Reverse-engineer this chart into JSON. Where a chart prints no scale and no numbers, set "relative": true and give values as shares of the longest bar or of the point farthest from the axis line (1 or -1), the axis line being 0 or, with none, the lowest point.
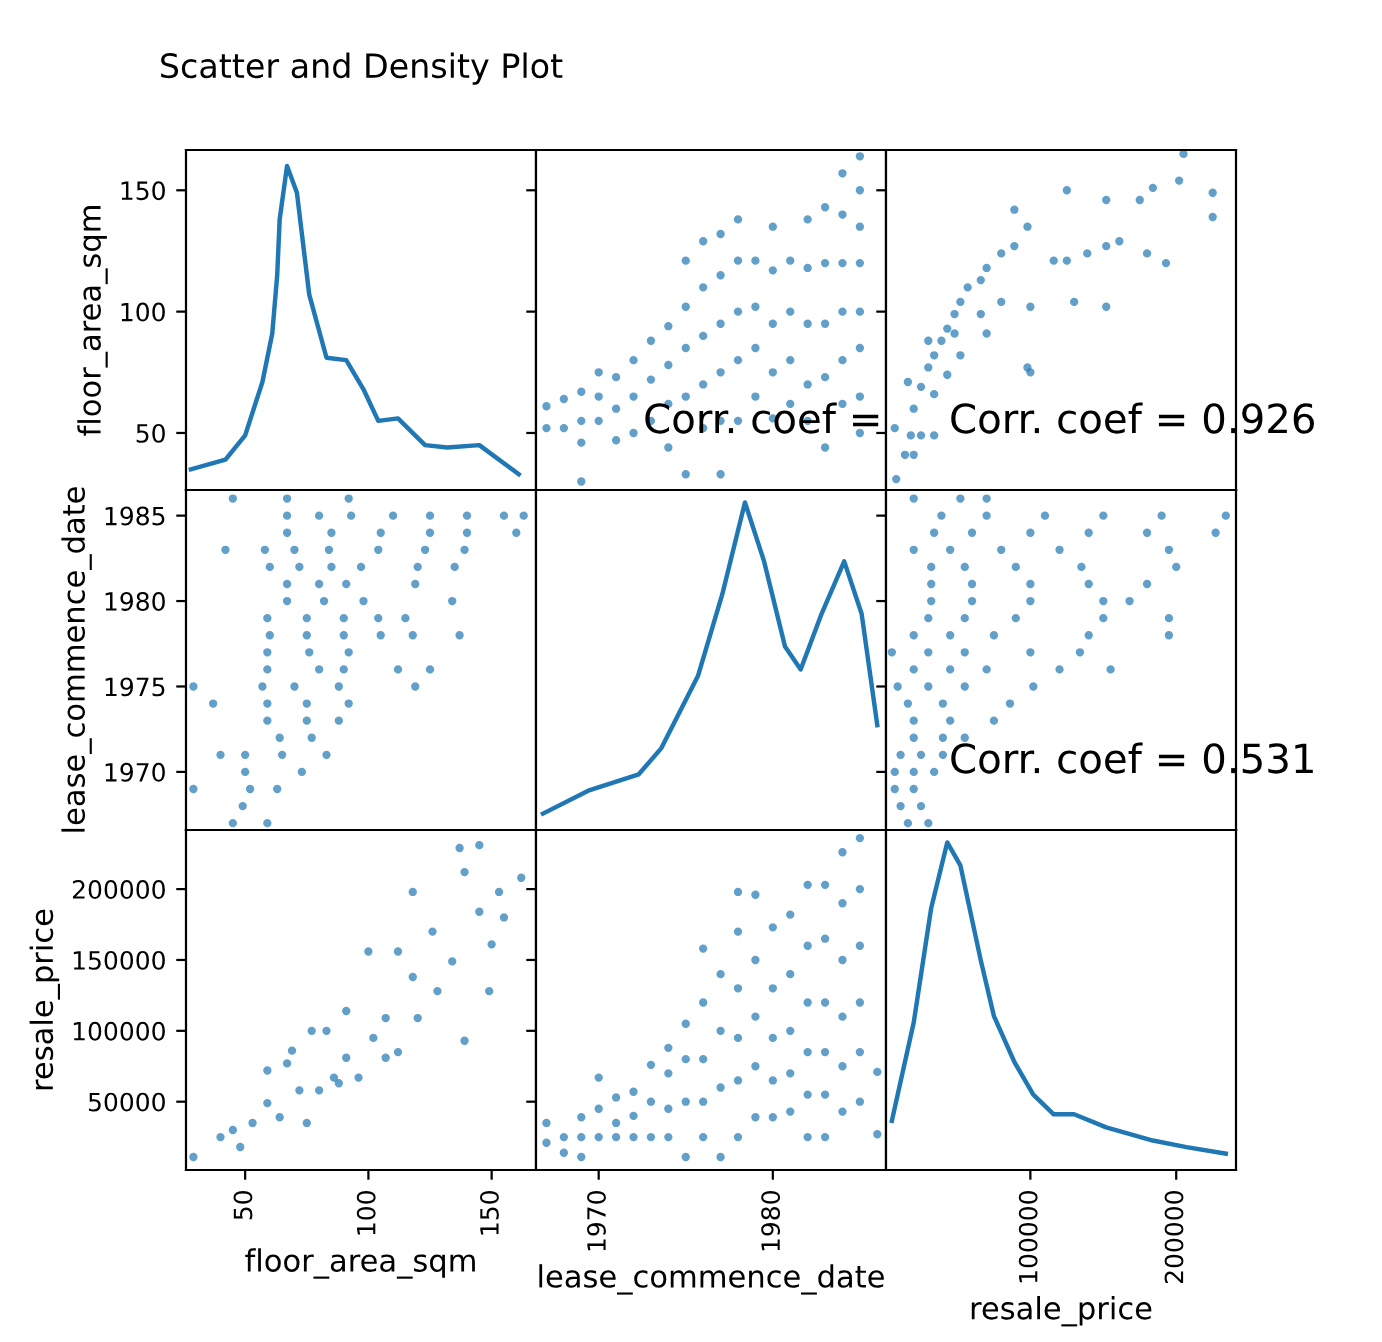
{
  "chart_data": [
    {
      "type": "line",
      "title": "Scatter and Density Plot",
      "ylabel": "floor_area_sqm",
      "tick_labels": "y",
      "xlim": [
        26,
        168
      ],
      "xticks": [
        50,
        100,
        150
      ],
      "ylim": [
        26.5,
        166.6
      ],
      "yticks": [
        50,
        100,
        150
      ],
      "marker": "none",
      "series": [
        {
          "color": "#1f77b4",
          "x": [
            28,
            42,
            50,
            57,
            61,
            63,
            64,
            67,
            71,
            76,
            83,
            91,
            98,
            104,
            112,
            123,
            132,
            145,
            161
          ],
          "values": [
            35,
            39,
            49,
            71,
            91,
            115,
            138,
            160,
            149,
            107,
            81,
            80,
            68,
            55,
            56,
            45,
            44,
            45,
            33
          ]
        }
      ]
    },
    {
      "type": "scatter",
      "tick_labels": false,
      "xlim": [
        1966.4,
        1986.5
      ],
      "xticks": [
        1970,
        1980
      ],
      "ylim": [
        26.5,
        166.6
      ],
      "yticks": [
        50,
        100,
        150
      ],
      "marker": "circle",
      "annotations": [
        "Corr. coef ="
      ],
      "series": [
        {
          "color": "#1f77b4",
          "x": [
            1967,
            1967,
            1968,
            1968,
            1969,
            1969,
            1969,
            1969,
            1970,
            1970,
            1970,
            1971,
            1971,
            1971,
            1972,
            1972,
            1972,
            1973,
            1973,
            1973,
            1974,
            1974,
            1974,
            1974,
            1975,
            1975,
            1975,
            1975,
            1975,
            1976,
            1976,
            1976,
            1976,
            1976,
            1977,
            1977,
            1977,
            1977,
            1977,
            1977,
            1978,
            1978,
            1978,
            1978,
            1978,
            1979,
            1979,
            1979,
            1979,
            1980,
            1980,
            1980,
            1980,
            1980,
            1981,
            1981,
            1981,
            1981,
            1982,
            1982,
            1982,
            1982,
            1982,
            1983,
            1983,
            1983,
            1983,
            1983,
            1984,
            1984,
            1984,
            1984,
            1984,
            1984,
            1985,
            1985,
            1985,
            1985,
            1985,
            1985,
            1985,
            1985
          ],
          "values": [
            61,
            52,
            64,
            52,
            67,
            55,
            46,
            30,
            75,
            65,
            55,
            73,
            60,
            47,
            80,
            65,
            50,
            88,
            72,
            55,
            94,
            78,
            62,
            44,
            121,
            102,
            85,
            65,
            33,
            129,
            110,
            90,
            70,
            52,
            132,
            115,
            95,
            75,
            55,
            33,
            138,
            121,
            100,
            80,
            55,
            121,
            102,
            85,
            65,
            135,
            117,
            95,
            75,
            56,
            121,
            100,
            80,
            62,
            138,
            118,
            95,
            70,
            55,
            143,
            120,
            95,
            73,
            44,
            157,
            140,
            120,
            100,
            80,
            62,
            164,
            150,
            135,
            120,
            100,
            85,
            65,
            50
          ]
        }
      ]
    },
    {
      "type": "scatter",
      "tick_labels": false,
      "xlim": [
        1000,
        241000
      ],
      "xticks": [
        100000,
        200000
      ],
      "ylim": [
        26.5,
        166.6
      ],
      "yticks": [
        50,
        100,
        150
      ],
      "marker": "circle",
      "annotations": [
        "Corr. coef = 0.926"
      ],
      "series": [
        {
          "color": "#1f77b4",
          "x": [
            8000,
            14000,
            18000,
            20000,
            25000,
            30000,
            34000,
            39000,
            43000,
            48000,
            52000,
            57000,
            66000,
            70000,
            80000,
            89000,
            98000,
            116000,
            125000,
            139000,
            152000,
            161000,
            175000,
            184000,
            202000,
            225000,
            205000,
            89000,
            125000,
            25000,
            20000,
            34000,
            43000,
            52000,
            70000,
            80000,
            100000,
            130000,
            152000,
            98000,
            100000,
            193000,
            180000,
            152000,
            225000,
            16000,
            30000,
            48000,
            66000,
            34000,
            7000
          ],
          "values": [
            31,
            41,
            49,
            60,
            69,
            77,
            82,
            88,
            93,
            99,
            104,
            110,
            113,
            118,
            124,
            127,
            135,
            121,
            121,
            124,
            127,
            129,
            146,
            151,
            154,
            149,
            165,
            142,
            150,
            49,
            41,
            66,
            74,
            82,
            91,
            104,
            102,
            104,
            102,
            77,
            75,
            120,
            124,
            146,
            139,
            71,
            88,
            91,
            99,
            49,
            52
          ]
        }
      ]
    },
    {
      "type": "scatter",
      "ylabel": "lease_commence_date",
      "tick_labels": "y",
      "xlim": [
        26,
        168
      ],
      "xticks": [
        50,
        100,
        150
      ],
      "ylim": [
        1966.6,
        1986.5
      ],
      "yticks": [
        1970,
        1975,
        1980,
        1985
      ],
      "marker": "circle",
      "series": [
        {
          "color": "#1f77b4",
          "x": [
            45,
            67,
            92,
            67,
            80,
            93,
            110,
            125,
            140,
            155,
            163,
            67,
            85,
            105,
            125,
            140,
            160,
            42,
            58,
            70,
            84,
            104,
            123,
            139,
            60,
            72,
            85,
            97,
            120,
            135,
            67,
            80,
            91,
            119,
            67,
            82,
            98,
            134,
            59,
            75,
            90,
            104,
            115,
            60,
            75,
            90,
            105,
            118,
            137,
            59,
            76,
            92,
            59,
            80,
            90,
            112,
            125,
            29,
            57,
            70,
            88,
            119,
            37,
            59,
            75,
            92,
            59,
            75,
            88,
            64,
            77,
            40,
            50,
            65,
            83,
            50,
            73,
            29,
            52,
            63,
            49,
            45,
            59
          ],
          "values": [
            1986,
            1986,
            1986,
            1985,
            1985,
            1985,
            1985,
            1985,
            1985,
            1985,
            1985,
            1984,
            1984,
            1984,
            1984,
            1984,
            1984,
            1983,
            1983,
            1983,
            1983,
            1983,
            1983,
            1983,
            1982,
            1982,
            1982,
            1982,
            1982,
            1982,
            1981,
            1981,
            1981,
            1981,
            1980,
            1980,
            1980,
            1980,
            1979,
            1979,
            1979,
            1979,
            1979,
            1978,
            1978,
            1978,
            1978,
            1978,
            1978,
            1977,
            1977,
            1977,
            1976,
            1976,
            1976,
            1976,
            1976,
            1975,
            1975,
            1975,
            1975,
            1975,
            1974,
            1974,
            1974,
            1974,
            1973,
            1973,
            1973,
            1972,
            1972,
            1971,
            1971,
            1971,
            1971,
            1970,
            1970,
            1969,
            1969,
            1969,
            1968,
            1967,
            1967
          ]
        }
      ]
    },
    {
      "type": "line",
      "relative": true,
      "tick_labels": false,
      "xlim": [
        1966.4,
        1986.5
      ],
      "xticks": [
        1970,
        1980
      ],
      "marker": "none",
      "series": [
        {
          "color": "#1f77b4",
          "x": [
            1966.8,
            1969.4,
            1972.3,
            1973.6,
            1975.7,
            1977.1,
            1978.4,
            1979.5,
            1980.7,
            1981.6,
            1982.8,
            1984.1,
            1985.1,
            1986.0
          ],
          "values": [
            0.05,
            0.12,
            0.17,
            0.25,
            0.47,
            0.72,
            1,
            0.82,
            0.56,
            0.49,
            0.66,
            0.82,
            0.66,
            0.32
          ]
        }
      ]
    },
    {
      "type": "scatter",
      "tick_labels": false,
      "xlim": [
        1000,
        241000
      ],
      "xticks": [
        100000,
        200000
      ],
      "ylim": [
        1966.6,
        1986.5
      ],
      "yticks": [
        1970,
        1975,
        1980,
        1985
      ],
      "marker": "circle",
      "annotations": [
        "Corr. coef = 0.531"
      ],
      "series": [
        {
          "color": "#1f77b4",
          "x": [
            20000,
            52000,
            70000,
            39000,
            70000,
            110000,
            150000,
            190000,
            234000,
            34000,
            60000,
            100000,
            140000,
            180000,
            227000,
            20000,
            45000,
            80000,
            120000,
            195000,
            32000,
            55000,
            90000,
            135000,
            200000,
            32000,
            60000,
            100000,
            140000,
            180000,
            32000,
            60000,
            100000,
            150000,
            168000,
            30000,
            55000,
            90000,
            150000,
            195000,
            20000,
            45000,
            75000,
            140000,
            195000,
            5000,
            30000,
            55000,
            100000,
            134000,
            20000,
            45000,
            70000,
            120000,
            155000,
            9000,
            30000,
            55000,
            102000,
            16000,
            40000,
            86000,
            20000,
            45000,
            75000,
            20000,
            40000,
            55000,
            11000,
            25000,
            40000,
            7000,
            20000,
            34000,
            7000,
            20000,
            11000,
            25000,
            16000,
            30000
          ],
          "values": [
            1986,
            1986,
            1986,
            1985,
            1985,
            1985,
            1985,
            1985,
            1985,
            1984,
            1984,
            1984,
            1984,
            1984,
            1984,
            1983,
            1983,
            1983,
            1983,
            1983,
            1982,
            1982,
            1982,
            1982,
            1982,
            1981,
            1981,
            1981,
            1981,
            1981,
            1980,
            1980,
            1980,
            1980,
            1980,
            1979,
            1979,
            1979,
            1979,
            1979,
            1978,
            1978,
            1978,
            1978,
            1978,
            1977,
            1977,
            1977,
            1977,
            1977,
            1976,
            1976,
            1976,
            1976,
            1976,
            1975,
            1975,
            1975,
            1975,
            1974,
            1974,
            1974,
            1973,
            1973,
            1973,
            1972,
            1972,
            1972,
            1971,
            1971,
            1971,
            1970,
            1970,
            1970,
            1969,
            1969,
            1968,
            1968,
            1967,
            1967
          ]
        }
      ]
    },
    {
      "type": "scatter",
      "xlabel": "floor_area_sqm",
      "ylabel": "resale_price",
      "xlim": [
        26,
        168
      ],
      "xticks": [
        50,
        100,
        150
      ],
      "ylim": [
        1800,
        241700
      ],
      "yticks": [
        50000,
        100000,
        150000,
        200000
      ],
      "marker": "circle",
      "series": [
        {
          "color": "#1f77b4",
          "x": [
            29,
            40,
            48,
            53,
            59,
            59,
            64,
            67,
            72,
            75,
            80,
            83,
            86,
            91,
            91,
            96,
            100,
            102,
            107,
            107,
            112,
            118,
            118,
            120,
            126,
            128,
            134,
            139,
            139,
            145,
            145,
            149,
            150,
            153,
            155,
            162,
            137,
            112,
            77,
            69,
            45,
            88
          ],
          "values": [
            11000,
            25000,
            18000,
            35000,
            49000,
            72000,
            39000,
            77000,
            58000,
            35000,
            58000,
            100000,
            67000,
            81000,
            114000,
            67000,
            156000,
            95000,
            109000,
            81000,
            85000,
            198000,
            138000,
            109000,
            170000,
            128000,
            149000,
            93000,
            212000,
            184000,
            231000,
            128000,
            161000,
            198000,
            180000,
            208000,
            229000,
            156000,
            100000,
            86000,
            30000,
            63000
          ]
        }
      ]
    },
    {
      "type": "scatter",
      "xlabel": "lease_commence_date",
      "tick_labels": "x",
      "xlim": [
        1966.4,
        1986.5
      ],
      "xticks": [
        1970,
        1980
      ],
      "ylim": [
        1800,
        241700
      ],
      "yticks": [
        50000,
        100000,
        150000,
        200000
      ],
      "marker": "circle",
      "series": [
        {
          "color": "#1f77b4",
          "x": [
            1967,
            1967,
            1968,
            1968,
            1969,
            1969,
            1969,
            1970,
            1970,
            1970,
            1971,
            1971,
            1971,
            1972,
            1972,
            1972,
            1973,
            1973,
            1973,
            1974,
            1974,
            1974,
            1974,
            1975,
            1975,
            1975,
            1975,
            1976,
            1976,
            1976,
            1976,
            1976,
            1977,
            1977,
            1977,
            1977,
            1978,
            1978,
            1978,
            1978,
            1978,
            1978,
            1979,
            1979,
            1979,
            1979,
            1979,
            1980,
            1980,
            1980,
            1980,
            1980,
            1981,
            1981,
            1981,
            1981,
            1981,
            1982,
            1982,
            1982,
            1982,
            1982,
            1982,
            1983,
            1983,
            1983,
            1983,
            1983,
            1983,
            1984,
            1984,
            1984,
            1984,
            1984,
            1984,
            1985,
            1985,
            1985,
            1985,
            1985,
            1985,
            1986,
            1986
          ],
          "values": [
            35000,
            21000,
            25000,
            14000,
            39000,
            25000,
            11000,
            67000,
            45000,
            25000,
            53000,
            35000,
            25000,
            57000,
            40000,
            25000,
            76000,
            50000,
            25000,
            88000,
            70000,
            45000,
            25000,
            105000,
            80000,
            50000,
            11000,
            158000,
            120000,
            80000,
            50000,
            25000,
            140000,
            100000,
            60000,
            11000,
            198000,
            170000,
            130000,
            95000,
            65000,
            25000,
            196000,
            150000,
            110000,
            75000,
            39000,
            173000,
            130000,
            95000,
            65000,
            39000,
            182000,
            140000,
            100000,
            70000,
            43000,
            203000,
            160000,
            120000,
            85000,
            55000,
            25000,
            203000,
            165000,
            120000,
            85000,
            55000,
            25000,
            226000,
            190000,
            150000,
            110000,
            75000,
            43000,
            236000,
            200000,
            160000,
            120000,
            85000,
            50000,
            71000,
            27000
          ]
        }
      ]
    },
    {
      "type": "line",
      "relative": true,
      "xlabel": "resale_price",
      "tick_labels": "x",
      "xlim": [
        1000,
        241000
      ],
      "xticks": [
        100000,
        200000
      ],
      "marker": "none",
      "series": [
        {
          "color": "#1f77b4",
          "x": [
            5000,
            20000,
            32000,
            43000,
            52000,
            66000,
            75000,
            89000,
            102000,
            116000,
            130000,
            152000,
            184000,
            207000,
            234000
          ],
          "values": [
            0.15,
            0.45,
            0.8,
            1,
            0.93,
            0.64,
            0.47,
            0.33,
            0.23,
            0.17,
            0.17,
            0.13,
            0.09,
            0.07,
            0.05
          ]
        }
      ]
    }
  ]
}
